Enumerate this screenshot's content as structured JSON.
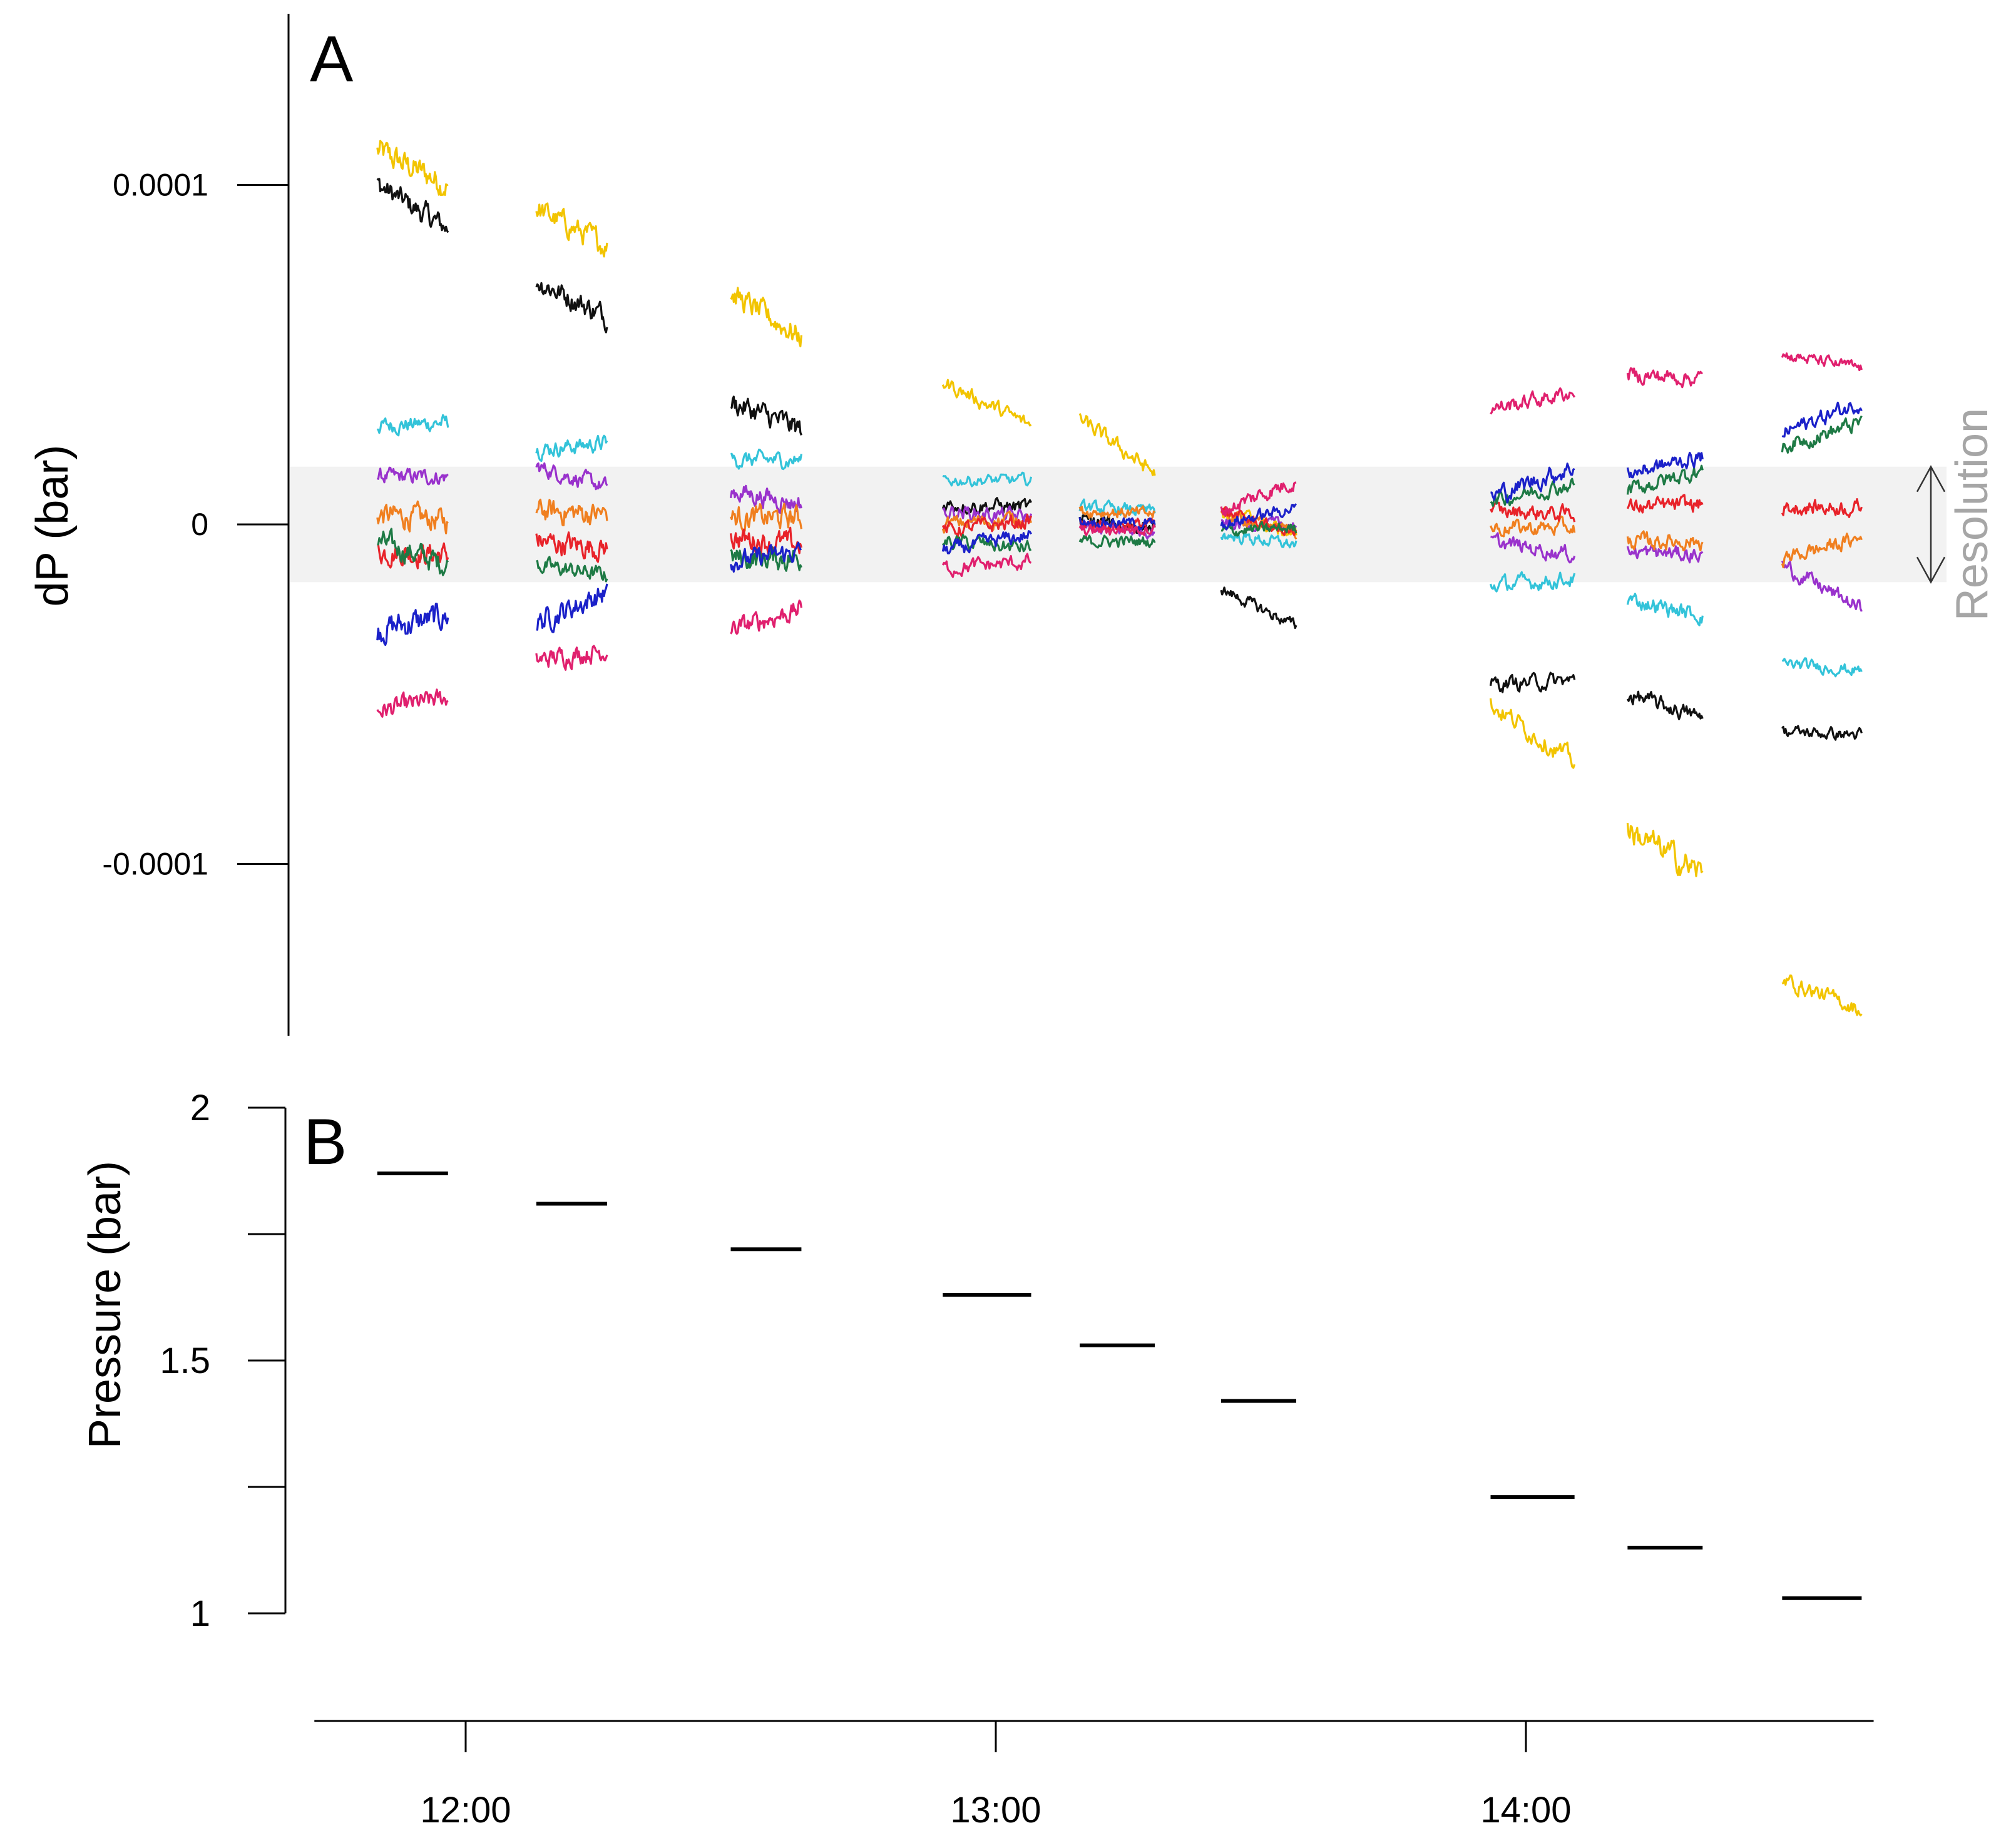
{
  "chart_data": [
    {
      "panel": "A",
      "type": "line",
      "ylabel": "dP (bar)",
      "ylim": [
        -0.000151,
        0.00015
      ],
      "yticks": [
        {
          "value": 0.0001,
          "label": "0.0001"
        },
        {
          "value": 0,
          "label": "0"
        },
        {
          "value": -0.0001,
          "label": "-0.0001"
        }
      ],
      "resolution_band": {
        "low": -1.7e-05,
        "high": 1.7e-05,
        "label": "Resolution",
        "color": "#f2f2f2"
      },
      "series_colors": {
        "yellow": "#f2c400",
        "black": "#111111",
        "cyan": "#33c3d9",
        "purple": "#9932cc",
        "orange": "#f07f1f",
        "red": "#e8232a",
        "green": "#1e7a45",
        "blue": "#1b21c9",
        "pink": "#e0206e"
      },
      "sessions": [
        {
          "t_start": 11.8333,
          "t_end": 11.9667,
          "traces": [
            {
              "series": "yellow",
              "start": 0.00011,
              "end": 0.0001,
              "noise": 3.5e-06
            },
            {
              "series": "black",
              "start": 0.0001,
              "end": 8.7e-05,
              "noise": 3e-06
            },
            {
              "series": "cyan",
              "start": 2.9e-05,
              "end": 3e-05,
              "noise": 2e-06
            },
            {
              "series": "purple",
              "start": 1.4e-05,
              "end": 1.4e-05,
              "noise": 2e-06
            },
            {
              "series": "orange",
              "start": 3e-06,
              "end": 1e-06,
              "noise": 3e-06
            },
            {
              "series": "red",
              "start": -8e-06,
              "end": -9e-06,
              "noise": 3e-06
            },
            {
              "series": "green",
              "start": -5e-06,
              "end": -1.2e-05,
              "noise": 3e-06
            },
            {
              "series": "blue",
              "start": -3.1e-05,
              "end": -2.7e-05,
              "noise": 3.5e-06
            },
            {
              "series": "pink",
              "start": -5.5e-05,
              "end": -5.1e-05,
              "noise": 2.5e-06
            }
          ]
        },
        {
          "t_start": 12.1333,
          "t_end": 12.2667,
          "traces": [
            {
              "series": "yellow",
              "start": 9.3e-05,
              "end": 8.2e-05,
              "noise": 3e-06
            },
            {
              "series": "black",
              "start": 7.2e-05,
              "end": 6.1e-05,
              "noise": 3e-06
            },
            {
              "series": "cyan",
              "start": 2.2e-05,
              "end": 2.4e-05,
              "noise": 2e-06
            },
            {
              "series": "purple",
              "start": 1.7e-05,
              "end": 1.1e-05,
              "noise": 2e-06
            },
            {
              "series": "orange",
              "start": 4e-06,
              "end": 3e-06,
              "noise": 3e-06
            },
            {
              "series": "red",
              "start": -5e-06,
              "end": -7e-06,
              "noise": 3e-06
            },
            {
              "series": "green",
              "start": -1.2e-05,
              "end": -1.5e-05,
              "noise": 2e-06
            },
            {
              "series": "blue",
              "start": -2.9e-05,
              "end": -2e-05,
              "noise": 3e-06
            },
            {
              "series": "pink",
              "start": -4e-05,
              "end": -3.7e-05,
              "noise": 2.5e-06
            }
          ]
        },
        {
          "t_start": 12.5,
          "t_end": 12.6333,
          "traces": [
            {
              "series": "yellow",
              "start": 6.8e-05,
              "end": 5.5e-05,
              "noise": 3e-06
            },
            {
              "series": "black",
              "start": 3.6e-05,
              "end": 2.8e-05,
              "noise": 3e-06
            },
            {
              "series": "cyan",
              "start": 1.9e-05,
              "end": 1.9e-05,
              "noise": 2e-06
            },
            {
              "series": "purple",
              "start": 1e-05,
              "end": 6e-06,
              "noise": 2.5e-06
            },
            {
              "series": "orange",
              "start": 2e-06,
              "end": 2e-06,
              "noise": 3e-06
            },
            {
              "series": "red",
              "start": -4e-06,
              "end": -6e-06,
              "noise": 3e-06
            },
            {
              "series": "green",
              "start": -1e-05,
              "end": -1e-05,
              "noise": 3e-06
            },
            {
              "series": "blue",
              "start": -1.1e-05,
              "end": -8e-06,
              "noise": 2.5e-06
            },
            {
              "series": "pink",
              "start": -3.1e-05,
              "end": -2.5e-05,
              "noise": 2.5e-06
            }
          ]
        },
        {
          "t_start": 12.9,
          "t_end": 13.0667,
          "traces": [
            {
              "series": "yellow",
              "start": 4.2e-05,
              "end": 2.9e-05,
              "noise": 2e-06
            },
            {
              "series": "black",
              "start": 6e-06,
              "end": 5e-06,
              "noise": 2e-06
            },
            {
              "series": "cyan",
              "start": 1.3e-05,
              "end": 1.3e-05,
              "noise": 1.5e-06
            },
            {
              "series": "purple",
              "start": 4e-06,
              "end": 2e-06,
              "noise": 2e-06
            },
            {
              "series": "orange",
              "start": 0.0,
              "end": 2e-06,
              "noise": 2e-06
            },
            {
              "series": "red",
              "start": -2e-06,
              "end": 1e-06,
              "noise": 2e-06
            },
            {
              "series": "green",
              "start": -5e-06,
              "end": -7e-06,
              "noise": 2e-06
            },
            {
              "series": "blue",
              "start": -8e-06,
              "end": -3e-06,
              "noise": 2e-06
            },
            {
              "series": "pink",
              "start": -1.3e-05,
              "end": -1.1e-05,
              "noise": 2e-06
            }
          ]
        },
        {
          "t_start": 13.1583,
          "t_end": 13.3,
          "traces": [
            {
              "series": "yellow",
              "start": 3.1e-05,
              "end": 1.5e-05,
              "noise": 2e-06
            },
            {
              "series": "black",
              "start": 1e-06,
              "end": -1e-06,
              "noise": 2e-06
            },
            {
              "series": "cyan",
              "start": 5e-06,
              "end": 4e-06,
              "noise": 1.5e-06
            },
            {
              "series": "purple",
              "start": -1e-06,
              "end": -2e-06,
              "noise": 1.5e-06
            },
            {
              "series": "orange",
              "start": 4e-06,
              "end": 3e-06,
              "noise": 1.5e-06
            },
            {
              "series": "red",
              "start": 0.0,
              "end": 0.0,
              "noise": 1.5e-06
            },
            {
              "series": "green",
              "start": -5e-06,
              "end": -5e-06,
              "noise": 1.5e-06
            },
            {
              "series": "blue",
              "start": 1e-06,
              "end": 0.0,
              "noise": 1.5e-06
            },
            {
              "series": "pink",
              "start": -2e-06,
              "end": -1e-06,
              "noise": 1.5e-06
            }
          ]
        },
        {
          "t_start": 13.425,
          "t_end": 13.5667,
          "traces": [
            {
              "series": "yellow",
              "start": 4e-06,
              "end": -3e-06,
              "noise": 2e-06
            },
            {
              "series": "black",
              "start": -1.9e-05,
              "end": -3e-05,
              "noise": 1.5e-06
            },
            {
              "series": "cyan",
              "start": -3e-06,
              "end": -6e-06,
              "noise": 1.5e-06
            },
            {
              "series": "purple",
              "start": 0.0,
              "end": 0.0,
              "noise": 1.5e-06
            },
            {
              "series": "orange",
              "start": 3e-06,
              "end": -2e-06,
              "noise": 1.5e-06
            },
            {
              "series": "red",
              "start": 4e-06,
              "end": -3e-06,
              "noise": 1.5e-06
            },
            {
              "series": "green",
              "start": -2e-06,
              "end": -1e-06,
              "noise": 1.5e-06
            },
            {
              "series": "blue",
              "start": 0.0,
              "end": 5e-06,
              "noise": 1.5e-06
            },
            {
              "series": "pink",
              "start": 4e-06,
              "end": 1.3e-05,
              "noise": 2e-06
            }
          ]
        },
        {
          "t_start": 13.9333,
          "t_end": 14.0917,
          "traces": [
            {
              "series": "yellow",
              "start": -5.3e-05,
              "end": -7e-05,
              "noise": 2.5e-06
            },
            {
              "series": "black",
              "start": -4.7e-05,
              "end": -4.6e-05,
              "noise": 2e-06
            },
            {
              "series": "cyan",
              "start": -1.8e-05,
              "end": -1.6e-05,
              "noise": 2e-06
            },
            {
              "series": "purple",
              "start": -5e-06,
              "end": -9e-06,
              "noise": 2e-06
            },
            {
              "series": "orange",
              "start": -1e-06,
              "end": -1e-06,
              "noise": 2e-06
            },
            {
              "series": "red",
              "start": 4e-06,
              "end": 3e-06,
              "noise": 2e-06
            },
            {
              "series": "green",
              "start": 7e-06,
              "end": 1.2e-05,
              "noise": 2e-06
            },
            {
              "series": "blue",
              "start": 8e-06,
              "end": 1.7e-05,
              "noise": 2.5e-06
            },
            {
              "series": "pink",
              "start": 3.4e-05,
              "end": 3.9e-05,
              "noise": 2e-06
            }
          ]
        },
        {
          "t_start": 14.1917,
          "t_end": 14.3333,
          "traces": [
            {
              "series": "yellow",
              "start": -9e-05,
              "end": -0.000103,
              "noise": 3.5e-06
            },
            {
              "series": "black",
              "start": -5e-05,
              "end": -5.7e-05,
              "noise": 2e-06
            },
            {
              "series": "cyan",
              "start": -2.2e-05,
              "end": -2.7e-05,
              "noise": 2e-06
            },
            {
              "series": "purple",
              "start": -8e-06,
              "end": -9e-06,
              "noise": 2e-06
            },
            {
              "series": "orange",
              "start": -5e-06,
              "end": -5e-06,
              "noise": 2e-06
            },
            {
              "series": "red",
              "start": 5e-06,
              "end": 6e-06,
              "noise": 2e-06
            },
            {
              "series": "green",
              "start": 1e-05,
              "end": 1.6e-05,
              "noise": 2e-06
            },
            {
              "series": "blue",
              "start": 1.5e-05,
              "end": 2e-05,
              "noise": 2e-06
            },
            {
              "series": "pink",
              "start": 4.4e-05,
              "end": 4.3e-05,
              "noise": 2e-06
            }
          ]
        },
        {
          "t_start": 14.4833,
          "t_end": 14.6333,
          "traces": [
            {
              "series": "yellow",
              "start": -0.000134,
              "end": -0.000143,
              "noise": 2e-06
            },
            {
              "series": "black",
              "start": -6.1e-05,
              "end": -6.2e-05,
              "noise": 1.5e-06
            },
            {
              "series": "cyan",
              "start": -4.1e-05,
              "end": -4.3e-05,
              "noise": 1.5e-06
            },
            {
              "series": "purple",
              "start": -1.2e-05,
              "end": -2.5e-05,
              "noise": 2e-06
            },
            {
              "series": "orange",
              "start": -1e-05,
              "end": -4e-06,
              "noise": 2e-06
            },
            {
              "series": "red",
              "start": 5e-06,
              "end": 5e-06,
              "noise": 2e-06
            },
            {
              "series": "green",
              "start": 2.3e-05,
              "end": 3e-05,
              "noise": 2e-06
            },
            {
              "series": "blue",
              "start": 2.7e-05,
              "end": 3.6e-05,
              "noise": 2e-06
            },
            {
              "series": "pink",
              "start": 5e-05,
              "end": 4.6e-05,
              "noise": 1.5e-06
            }
          ]
        }
      ]
    },
    {
      "panel": "B",
      "type": "line",
      "ylabel": "Pressure (bar)",
      "ylim": [
        1,
        2
      ],
      "yticks": [
        {
          "value": 2,
          "label": "2"
        },
        {
          "value": 1.75,
          "label": ""
        },
        {
          "value": 1.5,
          "label": "1.5"
        },
        {
          "value": 1.25,
          "label": ""
        },
        {
          "value": 1,
          "label": "1"
        }
      ],
      "segments": [
        {
          "t_start": 11.8333,
          "t_end": 11.9667,
          "pressure": 1.87
        },
        {
          "t_start": 12.1333,
          "t_end": 12.2667,
          "pressure": 1.81
        },
        {
          "t_start": 12.5,
          "t_end": 12.6333,
          "pressure": 1.72
        },
        {
          "t_start": 12.9,
          "t_end": 13.0667,
          "pressure": 1.63
        },
        {
          "t_start": 13.1583,
          "t_end": 13.3,
          "pressure": 1.53
        },
        {
          "t_start": 13.425,
          "t_end": 13.5667,
          "pressure": 1.42
        },
        {
          "t_start": 13.9333,
          "t_end": 14.0917,
          "pressure": 1.23
        },
        {
          "t_start": 14.1917,
          "t_end": 14.3333,
          "pressure": 1.13
        },
        {
          "t_start": 14.4833,
          "t_end": 14.6333,
          "pressure": 1.03
        }
      ]
    }
  ],
  "x_axis": {
    "range": [
      11.75,
      14.65
    ],
    "ticks": [
      {
        "value": 12,
        "label": "12:00"
      },
      {
        "value": 13,
        "label": "13:00"
      },
      {
        "value": 14,
        "label": "14:00"
      }
    ]
  }
}
